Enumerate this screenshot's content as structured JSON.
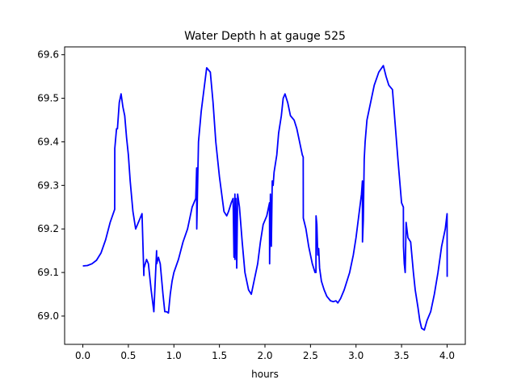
{
  "chart_data": {
    "type": "line",
    "title": "Water Depth h at gauge 525",
    "xlabel": "hours",
    "ylabel": "",
    "xlim": [
      -0.2,
      4.2
    ],
    "ylim": [
      68.935,
      69.618
    ],
    "xticks": [
      0.0,
      0.5,
      1.0,
      1.5,
      2.0,
      2.5,
      3.0,
      3.5,
      4.0
    ],
    "xtick_labels": [
      "0.0",
      "0.5",
      "1.0",
      "1.5",
      "2.0",
      "2.5",
      "3.0",
      "3.5",
      "4.0"
    ],
    "yticks": [
      69.0,
      69.1,
      69.2,
      69.3,
      69.4,
      69.5,
      69.6
    ],
    "ytick_labels": [
      "69.0",
      "69.1",
      "69.2",
      "69.3",
      "69.4",
      "69.5",
      "69.6"
    ],
    "grid": false,
    "legend": "none",
    "series": [
      {
        "color": "#0000ff",
        "x": [
          0.0,
          0.05,
          0.1,
          0.15,
          0.2,
          0.25,
          0.3,
          0.35,
          0.351,
          0.37,
          0.38,
          0.4,
          0.42,
          0.44,
          0.46,
          0.48,
          0.5,
          0.52,
          0.55,
          0.58,
          0.6,
          0.62,
          0.65,
          0.67,
          0.671,
          0.7,
          0.72,
          0.75,
          0.78,
          0.81,
          0.811,
          0.83,
          0.85,
          0.88,
          0.9,
          0.92,
          0.94,
          0.96,
          0.98,
          1.0,
          1.05,
          1.1,
          1.15,
          1.2,
          1.24,
          1.25,
          1.251,
          1.27,
          1.3,
          1.33,
          1.36,
          1.4,
          1.43,
          1.46,
          1.5,
          1.55,
          1.58,
          1.6,
          1.63,
          1.65,
          1.66,
          1.67,
          1.671,
          1.68,
          1.69,
          1.7,
          1.72,
          1.75,
          1.78,
          1.82,
          1.85,
          1.88,
          1.92,
          1.95,
          1.98,
          2.02,
          2.05,
          2.051,
          2.06,
          2.07,
          2.08,
          2.09,
          2.1,
          2.13,
          2.15,
          2.18,
          2.2,
          2.22,
          2.25,
          2.28,
          2.32,
          2.35,
          2.38,
          2.41,
          2.42,
          2.421,
          2.45,
          2.48,
          2.52,
          2.55,
          2.56,
          2.561,
          2.57,
          2.58,
          2.59,
          2.6,
          2.62,
          2.65,
          2.68,
          2.72,
          2.75,
          2.78,
          2.8,
          2.83,
          2.87,
          2.9,
          2.93,
          2.97,
          3.0,
          3.03,
          3.06,
          3.07,
          3.071,
          3.08,
          3.09,
          3.1,
          3.12,
          3.15,
          3.2,
          3.25,
          3.3,
          3.33,
          3.36,
          3.4,
          3.43,
          3.46,
          3.5,
          3.52,
          3.521,
          3.53,
          3.54,
          3.55,
          3.57,
          3.6,
          3.63,
          3.65,
          3.68,
          3.7,
          3.72,
          3.75,
          3.78,
          3.82,
          3.86,
          3.9,
          3.94,
          3.98,
          4.0,
          4.001
        ],
        "y": [
          69.115,
          69.116,
          69.12,
          69.128,
          69.145,
          69.175,
          69.215,
          69.245,
          69.385,
          69.43,
          69.43,
          69.49,
          69.51,
          69.48,
          69.46,
          69.41,
          69.37,
          69.31,
          69.24,
          69.2,
          69.21,
          69.22,
          69.235,
          69.093,
          69.11,
          69.13,
          69.12,
          69.06,
          69.01,
          69.15,
          69.12,
          69.135,
          69.12,
          69.05,
          69.01,
          69.01,
          69.007,
          69.05,
          69.08,
          69.1,
          69.13,
          69.17,
          69.2,
          69.25,
          69.27,
          69.34,
          69.2,
          69.4,
          69.47,
          69.52,
          69.57,
          69.56,
          69.49,
          69.4,
          69.32,
          69.24,
          69.23,
          69.24,
          69.26,
          69.27,
          69.135,
          69.28,
          69.13,
          69.27,
          69.11,
          69.28,
          69.25,
          69.17,
          69.1,
          69.06,
          69.05,
          69.08,
          69.12,
          69.17,
          69.21,
          69.23,
          69.26,
          69.12,
          69.28,
          69.16,
          69.31,
          69.3,
          69.33,
          69.37,
          69.42,
          69.46,
          69.5,
          69.51,
          69.49,
          69.46,
          69.45,
          69.43,
          69.4,
          69.37,
          69.365,
          69.225,
          69.2,
          69.16,
          69.12,
          69.1,
          69.1,
          69.23,
          69.21,
          69.14,
          69.155,
          69.11,
          69.08,
          69.06,
          69.045,
          69.035,
          69.033,
          69.035,
          69.03,
          69.04,
          69.06,
          69.08,
          69.1,
          69.14,
          69.18,
          69.23,
          69.28,
          69.31,
          69.17,
          69.22,
          69.36,
          69.4,
          69.45,
          69.48,
          69.53,
          69.56,
          69.575,
          69.55,
          69.53,
          69.52,
          69.44,
          69.36,
          69.26,
          69.25,
          69.16,
          69.12,
          69.1,
          69.215,
          69.18,
          69.17,
          69.1,
          69.06,
          69.02,
          68.99,
          68.972,
          68.968,
          68.99,
          69.01,
          69.05,
          69.1,
          69.16,
          69.2,
          69.235,
          69.09
        ]
      }
    ]
  }
}
